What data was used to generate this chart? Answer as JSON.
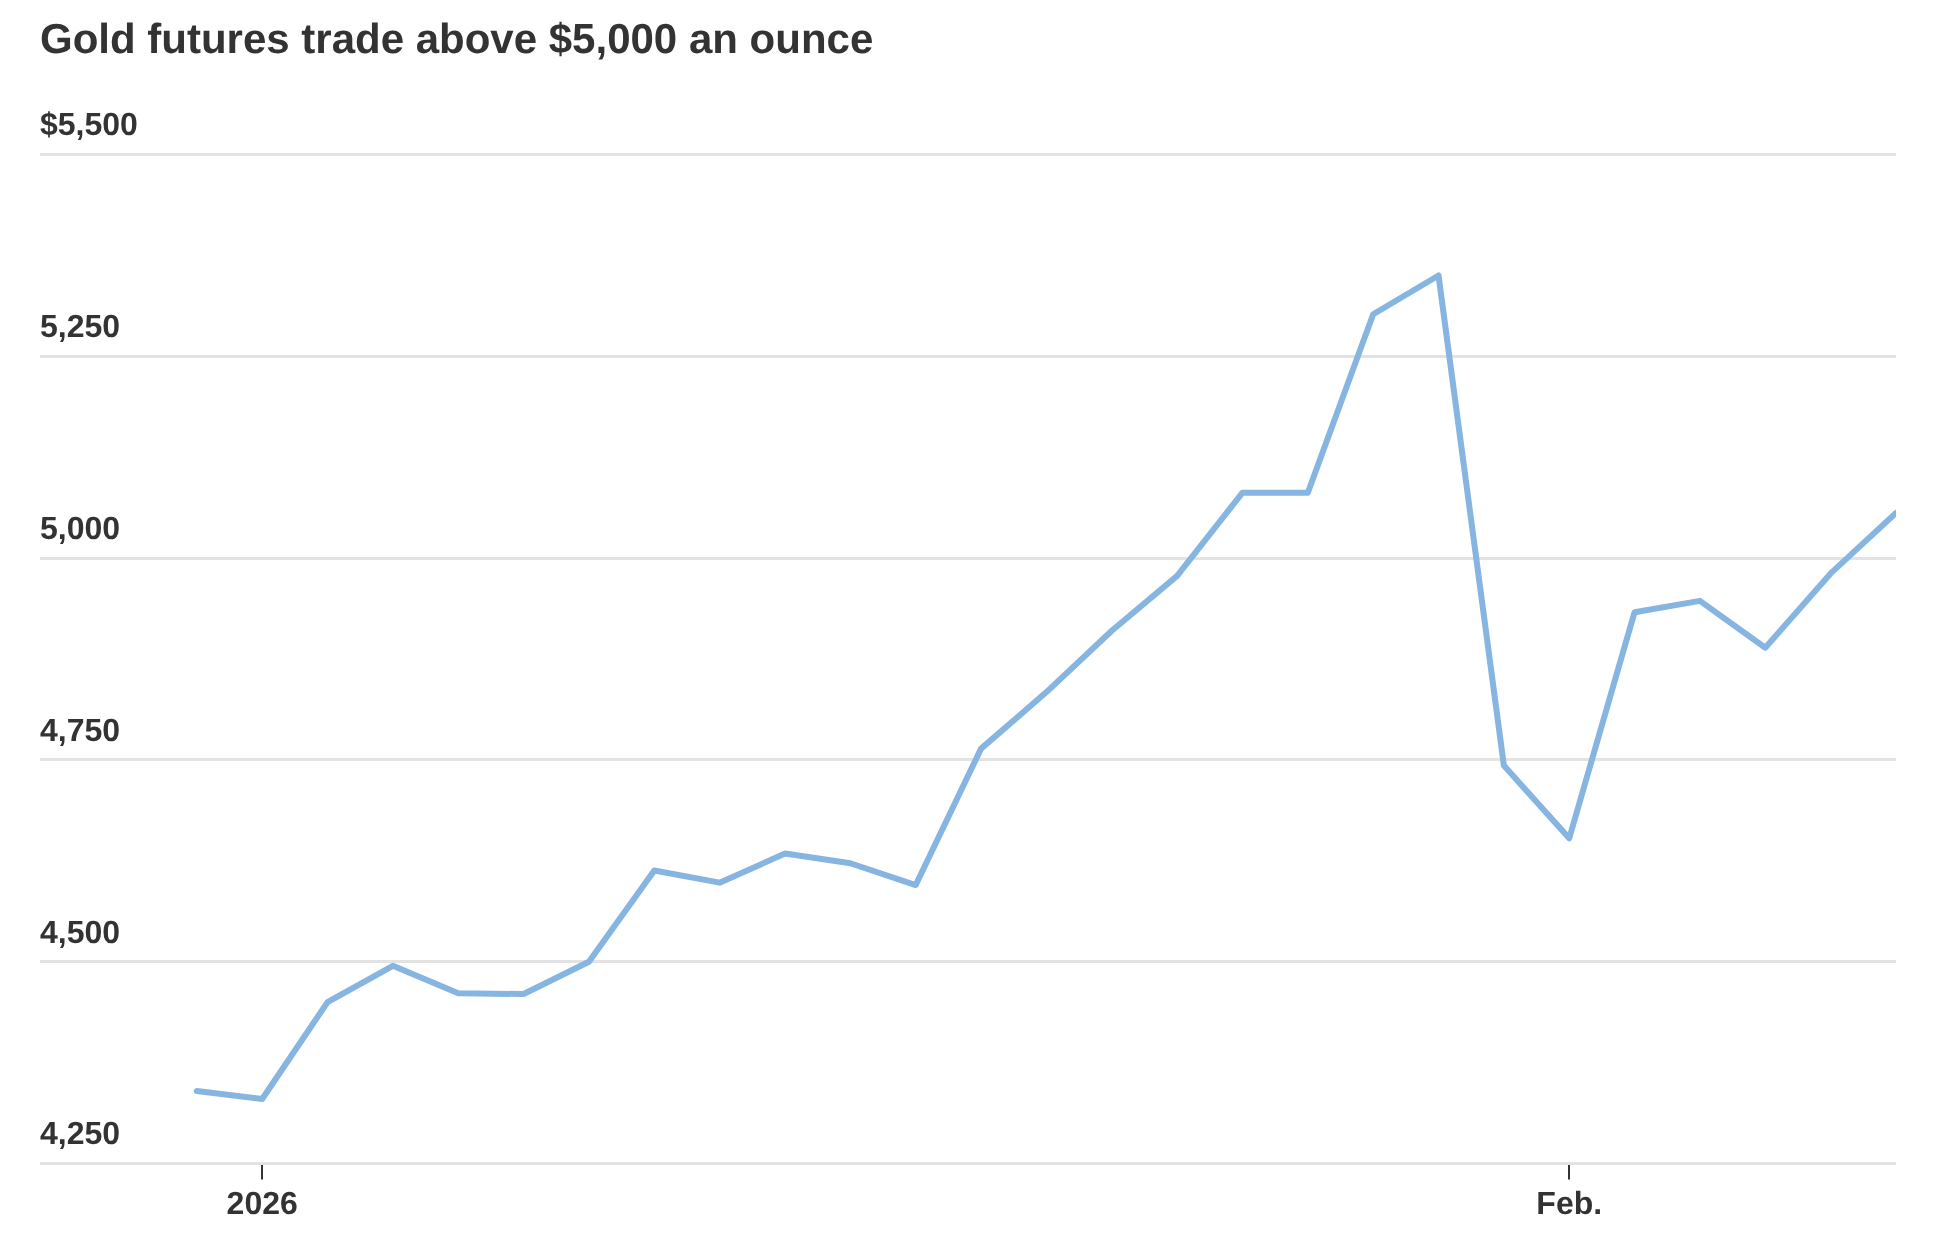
{
  "chart_data": {
    "type": "line",
    "title": "Gold futures trade above $5,000 an ounce",
    "categories": [
      null,
      "2026",
      null,
      null,
      null,
      null,
      null,
      null,
      null,
      null,
      null,
      null,
      null,
      null,
      null,
      null,
      null,
      null,
      null,
      null,
      null,
      "Feb.",
      null,
      null,
      null,
      null,
      null
    ],
    "series": [
      {
        "color": "#85b5e0",
        "values": [
          4340,
          4330,
          4450,
          4495,
          4461,
          4460,
          4500,
          4613,
          4598,
          4634,
          4622,
          4595,
          4764,
          4834,
          4910,
          4978,
          5081,
          5081,
          5302,
          5350,
          4743,
          4653,
          4933,
          4947,
          4889,
          4981,
          5056
        ]
      }
    ],
    "ylim": [
      4250,
      5500
    ],
    "yticks": [
      {
        "value": 4250,
        "label": "4,250"
      },
      {
        "value": 4500,
        "label": "4,500"
      },
      {
        "value": 4750,
        "label": "4,750"
      },
      {
        "value": 5000,
        "label": "5,000"
      },
      {
        "value": 5250,
        "label": "5,250"
      },
      {
        "value": 5500,
        "label": "$5,500"
      }
    ],
    "grid": "y",
    "legend": false,
    "marker": "none",
    "line_style": "solid"
  }
}
